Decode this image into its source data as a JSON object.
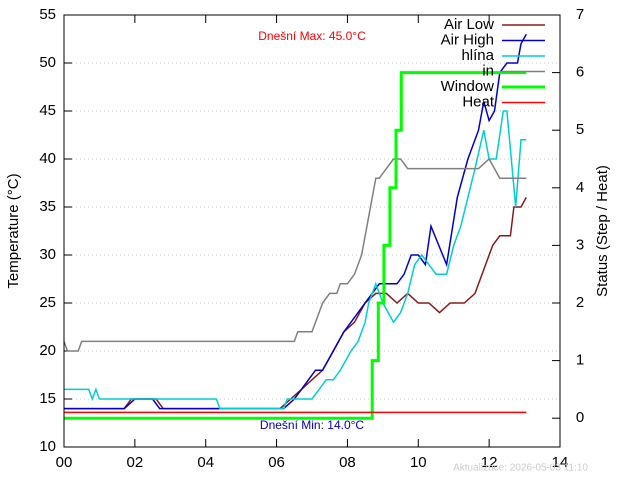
{
  "chart_data": {
    "type": "line",
    "y_label": "Temperature (°C)",
    "y2_label": "Status (Step / Heat)",
    "annotations": [
      "Dnešní Max: 45.0°C",
      "Dnešní Min: 14.0°C",
      "Aktualizace: 2026-05-03 11:10"
    ],
    "annotation_colors": [
      "#ff0000",
      "#0000cd",
      "#cccccc"
    ],
    "xlim": [
      0,
      14
    ],
    "xticks": [
      {
        "value": 0,
        "label": "00"
      },
      {
        "value": 2,
        "label": "02"
      },
      {
        "value": 4,
        "label": "04"
      },
      {
        "value": 6,
        "label": "06"
      },
      {
        "value": 8,
        "label": "08"
      },
      10,
      12,
      14
    ],
    "ylim": [
      10,
      55
    ],
    "yticks": [
      10,
      15,
      20,
      25,
      30,
      35,
      40,
      45,
      50,
      55
    ],
    "y2lim": [
      -0.5,
      7
    ],
    "y2ticks": [
      0,
      1,
      2,
      3,
      4,
      5,
      6,
      7
    ],
    "grid": true,
    "legend": "top-right",
    "series": [
      {
        "name": "Air Low",
        "color": "#8b1a1a",
        "x": [
          0,
          1.7,
          1.9,
          2.6,
          2.8,
          6.1,
          6.4,
          6.7,
          7.0,
          7.3,
          7.6,
          7.9,
          8.2,
          8.5,
          8.8,
          9.1,
          9.4,
          9.7,
          10.0,
          10.3,
          10.6,
          10.9,
          11.3,
          11.6,
          11.9,
          12.1,
          12.3,
          12.6,
          12.7,
          12.9,
          13.05
        ],
        "values": [
          14,
          14,
          15,
          15,
          14,
          14,
          15,
          16,
          17,
          18,
          20,
          22,
          23,
          25,
          26,
          26,
          25,
          26,
          25,
          25,
          24,
          25,
          25,
          26,
          29,
          31,
          32,
          32,
          35,
          35,
          36
        ]
      },
      {
        "name": "Air High",
        "color": "#0000cd",
        "x": [
          0,
          1.7,
          2.0,
          2.5,
          2.7,
          6.2,
          6.5,
          6.7,
          7.1,
          7.3,
          7.6,
          7.9,
          8.1,
          8.3,
          8.5,
          8.7,
          8.9,
          9.4,
          9.6,
          9.8,
          10.0,
          10.2,
          10.36,
          10.8,
          11.1,
          11.4,
          11.7,
          11.85,
          12.0,
          12.15,
          12.3,
          12.5,
          12.8,
          12.9,
          13.05
        ],
        "values": [
          14,
          14,
          15,
          15,
          14,
          14,
          15,
          16,
          18,
          18,
          20,
          22,
          23,
          24,
          25,
          26,
          27,
          27,
          28,
          30,
          30,
          29,
          33,
          29,
          36,
          40,
          43,
          46,
          44,
          45,
          49,
          50,
          50,
          52,
          53
        ]
      },
      {
        "name": "hlína",
        "color": "#00ced1",
        "x": [
          0,
          0.7,
          0.8,
          0.9,
          1.0,
          4.3,
          4.4,
          6.2,
          6.3,
          7.0,
          7.2,
          7.4,
          7.6,
          7.8,
          8.1,
          8.3,
          8.5,
          8.6,
          8.8,
          9.0,
          9.3,
          9.5,
          9.7,
          9.9,
          10.1,
          10.3,
          10.5,
          10.8,
          11.0,
          11.2,
          11.4,
          11.6,
          11.85,
          12.0,
          12.2,
          12.4,
          12.5,
          12.75,
          12.9,
          13.05
        ],
        "values": [
          16,
          16,
          15,
          16,
          15,
          15,
          14,
          14,
          15,
          15,
          16,
          17,
          17,
          18,
          20,
          21,
          23,
          25,
          27,
          25,
          23,
          24,
          26,
          29,
          30,
          29,
          28,
          28,
          31,
          33,
          36,
          39,
          43,
          40,
          40,
          45,
          45,
          35,
          42,
          42
        ]
      },
      {
        "name": "in",
        "color": "#808080",
        "x": [
          0,
          0.1,
          0.4,
          0.5,
          6.5,
          6.6,
          7.0,
          7.1,
          7.3,
          7.5,
          7.7,
          7.8,
          8.0,
          8.2,
          8.4,
          8.6,
          8.8,
          8.9,
          9.1,
          9.3,
          9.5,
          9.7,
          11.7,
          12.0,
          12.3,
          13.05
        ],
        "values": [
          21,
          20,
          20,
          21,
          21,
          22,
          22,
          23,
          25,
          26,
          26,
          27,
          27,
          28,
          30,
          34,
          38,
          38,
          39,
          40,
          40,
          39,
          39,
          40,
          38,
          38
        ]
      },
      {
        "name": "Window",
        "color": "#00ff00",
        "axis": "y2",
        "x": [
          0,
          8.7,
          8.7,
          8.87,
          8.87,
          9.03,
          9.03,
          9.2,
          9.2,
          9.37,
          9.37,
          9.52,
          9.52,
          13.05
        ],
        "values": [
          0,
          0,
          1,
          1,
          2,
          2,
          3,
          3,
          4,
          4,
          5,
          5,
          6,
          6
        ]
      },
      {
        "name": "Heat",
        "color": "#ff0000",
        "axis": "y2",
        "x": [
          0,
          13.05
        ],
        "values": [
          0.1,
          0.1
        ]
      }
    ]
  }
}
